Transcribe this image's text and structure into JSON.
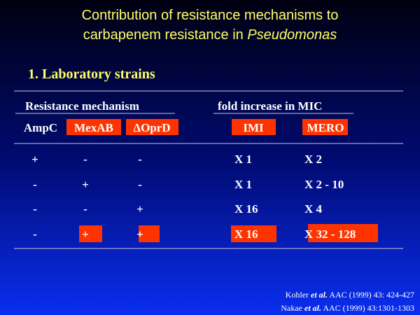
{
  "title": {
    "line1": "Contribution of resistance mechanisms to",
    "line2": "carbapenem resistance in ",
    "line2_italic": "Pseudomonas"
  },
  "subtitle": "1.  Laboratory strains",
  "table": {
    "group_headers": [
      "Resistance mechanism",
      "fold increase in MIC"
    ],
    "columns": [
      "AmpC",
      "MexAB",
      "ΔOprD",
      "IMI",
      "MERO"
    ],
    "rows": [
      [
        "+",
        "-",
        "-",
        "X 1",
        "X 2"
      ],
      [
        "-",
        "+",
        "-",
        "X 1",
        "X 2 - 10"
      ],
      [
        "-",
        "-",
        "+",
        "X 16",
        "X 4"
      ],
      [
        "-",
        "+",
        "+",
        "X 16",
        "X 32 - 128"
      ]
    ]
  },
  "references": [
    {
      "author": "Kohler ",
      "etal": "et al.",
      "rest": " AAC (1999) 43: 424-427"
    },
    {
      "author": "Nakae ",
      "etal": "et al.",
      "rest": " AAC (1999) 43:1301-1303"
    }
  ]
}
